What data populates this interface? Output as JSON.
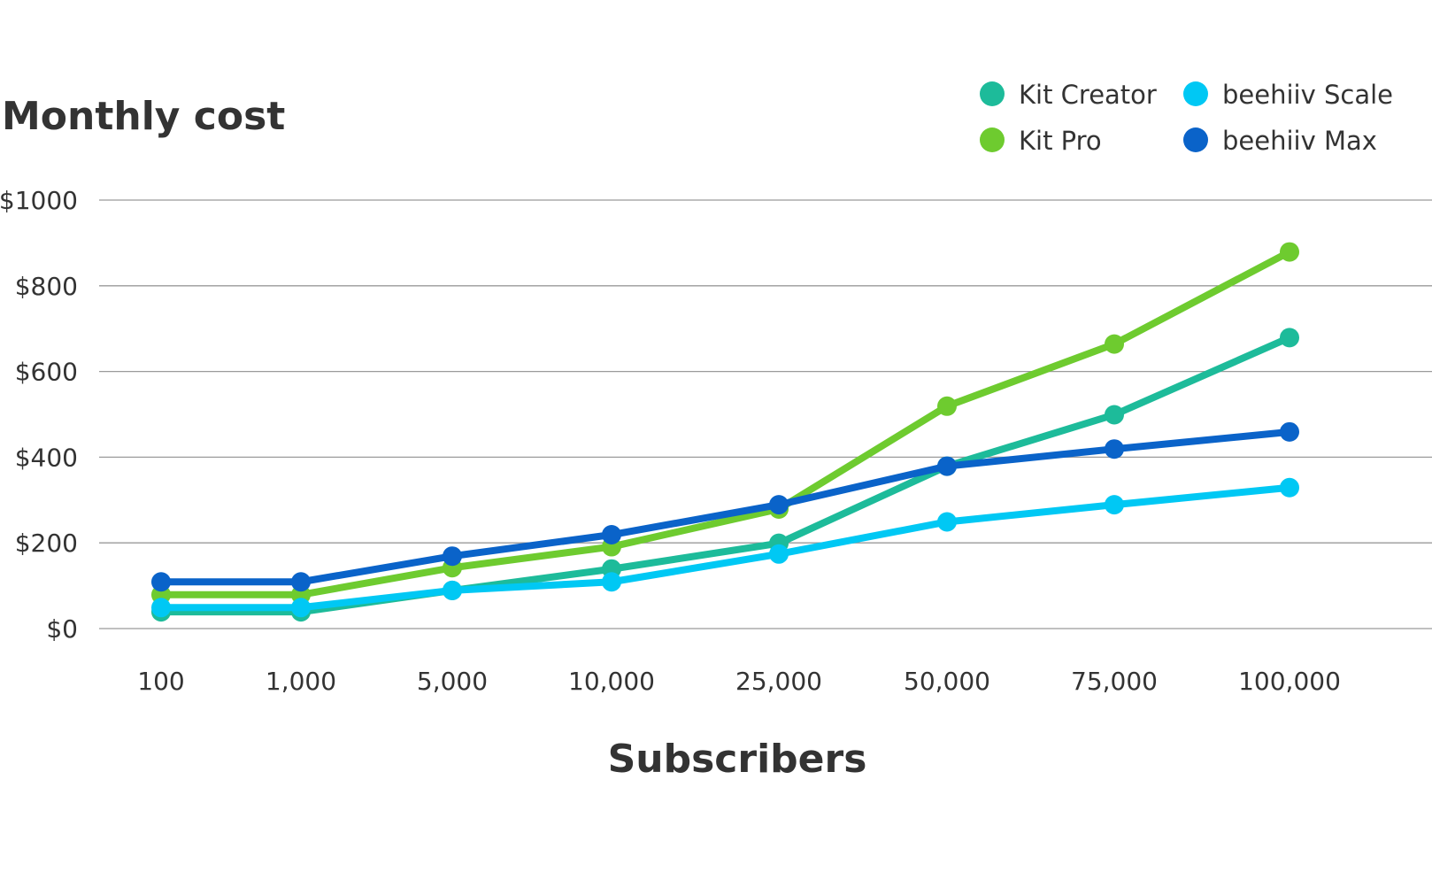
{
  "chart_data": {
    "type": "line",
    "title": "Monthly cost",
    "xlabel": "Subscribers",
    "ylabel": "",
    "categories": [
      "100",
      "1,000",
      "5,000",
      "10,000",
      "25,000",
      "50,000",
      "75,000",
      "100,000"
    ],
    "ylim": [
      0,
      1000
    ],
    "yticks": [
      0,
      200,
      400,
      600,
      800,
      1000
    ],
    "ytick_labels": [
      "$0",
      "$200",
      "$400",
      "$600",
      "$800",
      "$1000"
    ],
    "grid": true,
    "legend_position": "top-right",
    "series": [
      {
        "name": "Kit Creator",
        "color": "#1dbb9a",
        "values": [
          39,
          39,
          89,
          139,
          199,
          379,
          499,
          679
        ]
      },
      {
        "name": "Kit Pro",
        "color": "#6ecb2f",
        "values": [
          79,
          79,
          142,
          191,
          279,
          519,
          664,
          879
        ]
      },
      {
        "name": "beehiiv Scale",
        "color": "#00c8f4",
        "values": [
          49,
          49,
          89,
          109,
          174,
          249,
          289,
          329
        ]
      },
      {
        "name": "beehiiv Max",
        "color": "#0a63c9",
        "values": [
          109,
          109,
          169,
          219,
          289,
          379,
          419,
          459
        ]
      }
    ]
  }
}
